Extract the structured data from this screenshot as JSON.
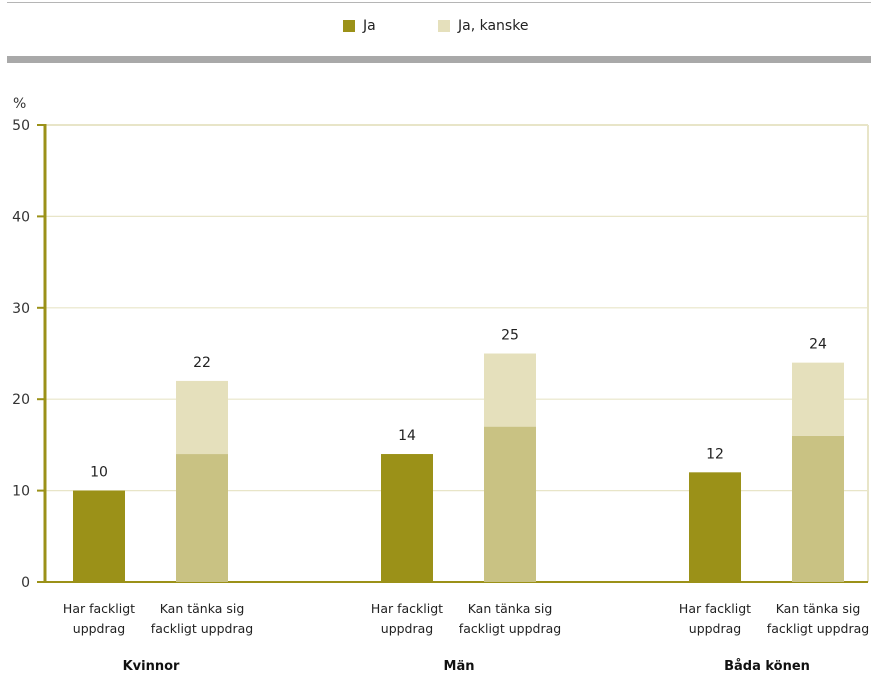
{
  "colors": {
    "ja": "#9b9118",
    "ja_kanske": "#e5e0bc",
    "base": "#c9c283",
    "axis": "#9b9118",
    "grid": "#e8e5c8"
  },
  "legend": [
    {
      "label": "Ja",
      "color": "#9b9118"
    },
    {
      "label": "Ja, kanske",
      "color": "#e5e0bc"
    }
  ],
  "chart_data": {
    "type": "bar",
    "ylabel": "%",
    "ylim": [
      0,
      50
    ],
    "yticks": [
      0,
      10,
      20,
      30,
      40,
      50
    ],
    "groups": [
      {
        "name": "Kvinnor",
        "bars": [
          {
            "category": "Har fackligt uppdrag",
            "ja": 10,
            "total": 10
          },
          {
            "category": "Kan tänka sig fackligt uppdrag",
            "ja": 14,
            "total": 22
          }
        ]
      },
      {
        "name": "Män",
        "bars": [
          {
            "category": "Har fackligt uppdrag",
            "ja": 14,
            "total": 14
          },
          {
            "category": "Kan tänka sig fackligt uppdrag",
            "ja": 17,
            "total": 25
          }
        ]
      },
      {
        "name": "Båda könen",
        "bars": [
          {
            "category": "Har fackligt uppdrag",
            "ja": 12,
            "total": 12
          },
          {
            "category": "Kan tänka sig fackligt uppdrag",
            "ja": 16,
            "total": 24
          }
        ]
      }
    ],
    "grid": true,
    "legend_position": "top"
  }
}
